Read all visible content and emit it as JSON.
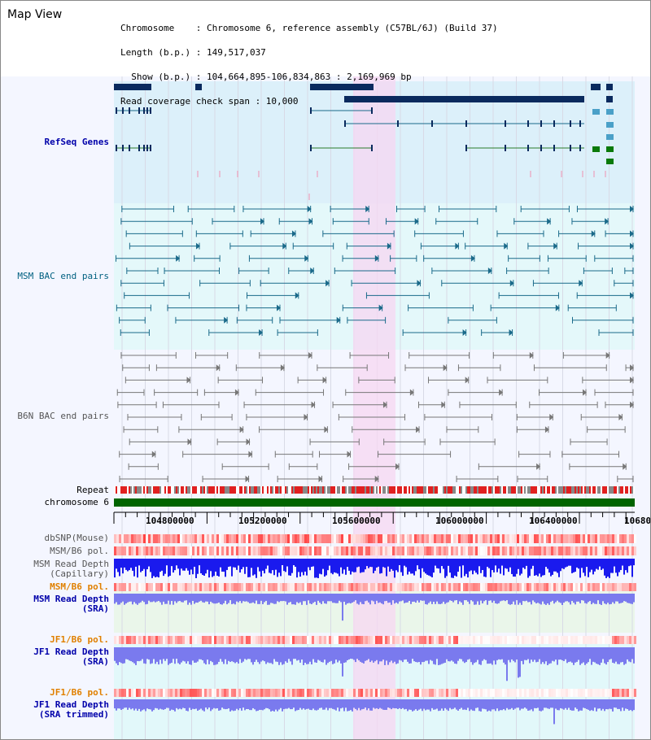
{
  "app": {
    "title": "Map View"
  },
  "info": {
    "lines": [
      "Chromosome    : Chromosome 6, reference assembly (C57BL/6J) (Build 37)",
      "Length (b.p.) : 149,517,037",
      "  Show (b.p.) : 104,664,895-106,834,863 : 2,169,969 bp",
      "Read coverage check span : 10,000"
    ]
  },
  "tracks": {
    "refseq": "RefSeq Genes",
    "msm_bac": "MSM BAC end pairs",
    "b6n_bac": "B6N BAC end pairs",
    "repeat": "Repeat",
    "chrom": "chromosome 6",
    "dbsnp": "dbSNP(Mouse)",
    "msm_b6_pol_1": "MSM/B6 pol.",
    "msm_depth_cap_1": "MSM Read Depth",
    "msm_depth_cap_2": "(Capillary)",
    "msm_b6_pol_2": "MSM/B6 pol.",
    "msm_depth_sra_1": "MSM Read Depth",
    "msm_depth_sra_2": "(SRA)",
    "jf1_b6_pol_1": "JF1/B6 pol.",
    "jf1_depth_sra_1": "JF1 Read Depth",
    "jf1_depth_sra_2": "(SRA)",
    "jf1_b6_pol_2": "JF1/B6 pol.",
    "jf1_depth_trim_1": "JF1 Read Depth",
    "jf1_depth_trim_2": "(SRA trimmed)"
  },
  "axis": {
    "ticks": [
      "104800000",
      "105200000",
      "105600000",
      "106000000",
      "106400000",
      "10680"
    ]
  },
  "colors": {
    "refseq_bg": "#dcf0fa",
    "msm_bg": "#e4f8fa",
    "highlight": "#f7d7f2",
    "gene_dark": "#0a2a5e",
    "msm_pair": "#1a6a8a",
    "b6n_pair": "#777777",
    "repeat_red": "#e02020",
    "chrom_green": "#006400",
    "depth_blue": "#1a1aee",
    "sra_blue": "#7a7aee",
    "label_blue": "#0000aa",
    "label_teal": "#006080",
    "label_orange": "#e08000"
  }
}
